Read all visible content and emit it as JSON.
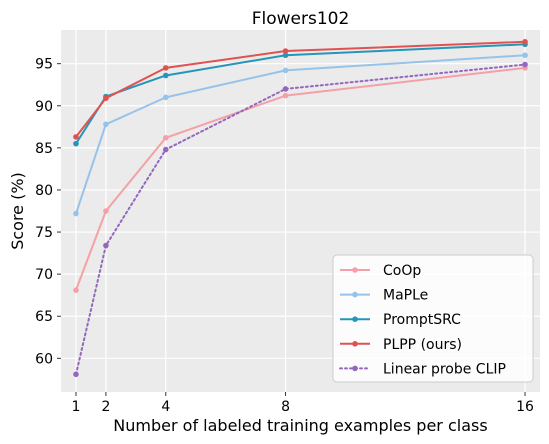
{
  "chart_data": {
    "type": "line",
    "title": "Flowers102",
    "xlabel": "Number of labeled training examples per class",
    "ylabel": "Score (%)",
    "x": [
      1,
      2,
      4,
      8,
      16
    ],
    "xticks": [
      "1",
      "2",
      "4",
      "8",
      "16"
    ],
    "yticks": [
      "60",
      "65",
      "70",
      "75",
      "80",
      "85",
      "90",
      "95"
    ],
    "xlim": [
      0.5,
      16.5
    ],
    "ylim": [
      56,
      99
    ],
    "grid": true,
    "legend_position": "lower-right",
    "series": [
      {
        "name": "CoOp",
        "values": [
          68.1,
          77.5,
          86.2,
          91.2,
          94.5
        ],
        "color": "#f4a0a6",
        "style": "solid"
      },
      {
        "name": "MaPLe",
        "values": [
          77.2,
          87.8,
          91.0,
          94.2,
          96.0
        ],
        "color": "#96c3ea",
        "style": "solid"
      },
      {
        "name": "PromptSRC",
        "values": [
          85.5,
          91.1,
          93.6,
          96.0,
          97.3
        ],
        "color": "#2596b8",
        "style": "solid"
      },
      {
        "name": "PLPP (ours)",
        "values": [
          86.3,
          90.9,
          94.5,
          96.5,
          97.6
        ],
        "color": "#e05252",
        "style": "solid"
      },
      {
        "name": "Linear probe CLIP",
        "values": [
          58.1,
          73.4,
          84.8,
          92.0,
          94.9
        ],
        "color": "#9467bd",
        "style": "dotted"
      }
    ]
  }
}
